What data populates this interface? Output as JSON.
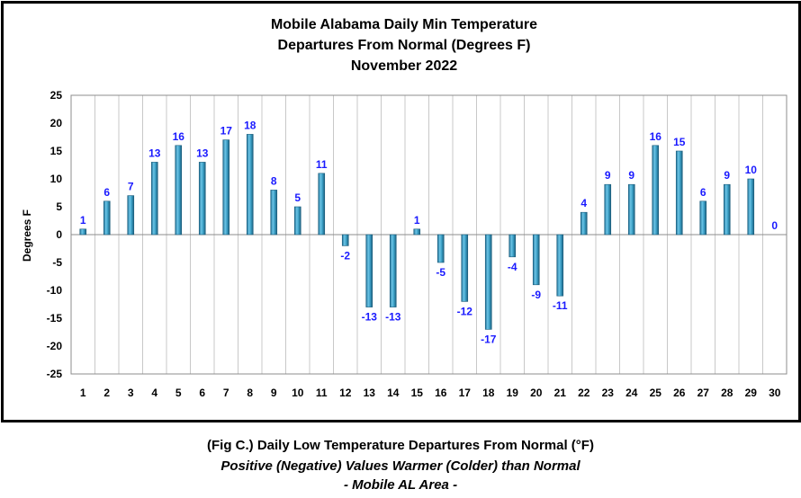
{
  "chart_data": {
    "type": "bar",
    "title": [
      "Mobile Alabama Daily Min Temperature",
      "Departures From Normal (Degrees F)",
      "November 2022"
    ],
    "ylabel": "Degrees F",
    "xlabel": "",
    "ylim": [
      -25,
      25
    ],
    "yticks": [
      25,
      20,
      15,
      10,
      5,
      0,
      -5,
      -10,
      -15,
      -20,
      -25
    ],
    "grid": "vertical",
    "categories": [
      "1",
      "2",
      "3",
      "4",
      "5",
      "6",
      "7",
      "8",
      "9",
      "10",
      "11",
      "12",
      "13",
      "14",
      "15",
      "16",
      "17",
      "18",
      "19",
      "20",
      "21",
      "22",
      "23",
      "24",
      "25",
      "26",
      "27",
      "28",
      "29",
      "30"
    ],
    "values": [
      1,
      6,
      7,
      13,
      16,
      13,
      17,
      18,
      8,
      5,
      11,
      -2,
      -13,
      -13,
      1,
      -5,
      -12,
      -17,
      -4,
      -9,
      -11,
      4,
      9,
      9,
      16,
      15,
      6,
      9,
      10,
      0
    ],
    "bar_color": "#3a9ec4",
    "label_color": "#1a1aff"
  },
  "caption": {
    "line1": "(Fig C.) Daily Low Temperature Departures From Normal (°F)",
    "line2": "Positive (Negative) Values Warmer (Colder) than Normal",
    "line3": "- Mobile AL Area -"
  }
}
